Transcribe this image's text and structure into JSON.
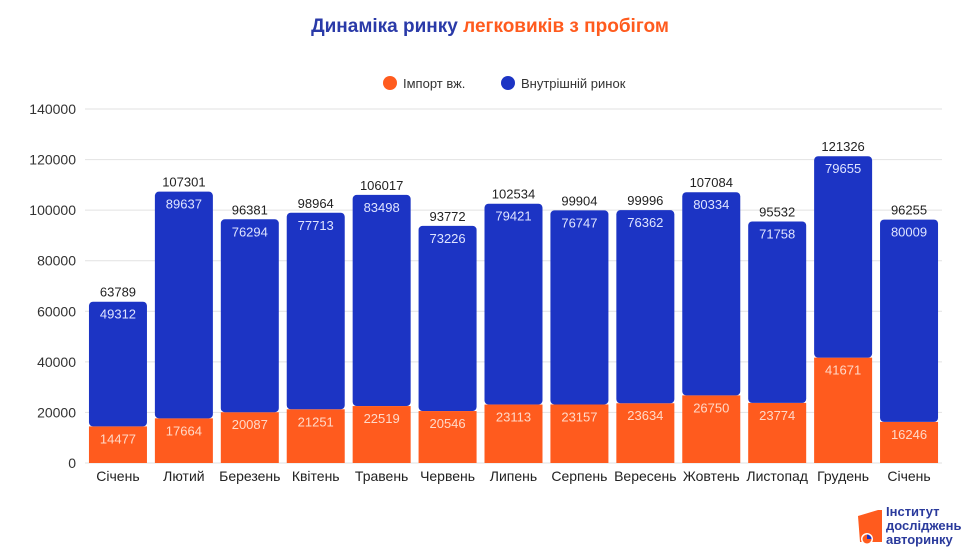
{
  "chart_data": {
    "type": "bar",
    "stacked": true,
    "title_part1": "Динаміка ринку",
    "title_part2": "легковиків з пробігом",
    "categories": [
      "Січень",
      "Лютий",
      "Березень",
      "Квітень",
      "Травень",
      "Червень",
      "Липень",
      "Серпень",
      "Вересень",
      "Жовтень",
      "Листопад",
      "Грудень",
      "Січень"
    ],
    "series": [
      {
        "name": "Імпорт вж.",
        "color": "#ff5b1e",
        "values": [
          14477,
          17664,
          20087,
          21251,
          22519,
          20546,
          23113,
          23157,
          23634,
          26750,
          23774,
          41671,
          16246
        ]
      },
      {
        "name": "Внутрішній ринок",
        "color": "#1c34c4",
        "values": [
          49312,
          89637,
          76294,
          77713,
          83498,
          73226,
          79421,
          76747,
          76362,
          80334,
          71758,
          79655,
          80009
        ]
      }
    ],
    "totals": [
      63789,
      107301,
      96381,
      98964,
      106017,
      93772,
      102534,
      99904,
      99996,
      107084,
      95532,
      121326,
      96255
    ],
    "ylim": [
      0,
      140000
    ],
    "yticks": [
      0,
      20000,
      40000,
      60000,
      80000,
      100000,
      120000,
      140000
    ],
    "grid": true,
    "legend_position": "top-center"
  },
  "logo": {
    "line1": "Інститут",
    "line2": "досліджень",
    "line3": "авторинку"
  }
}
